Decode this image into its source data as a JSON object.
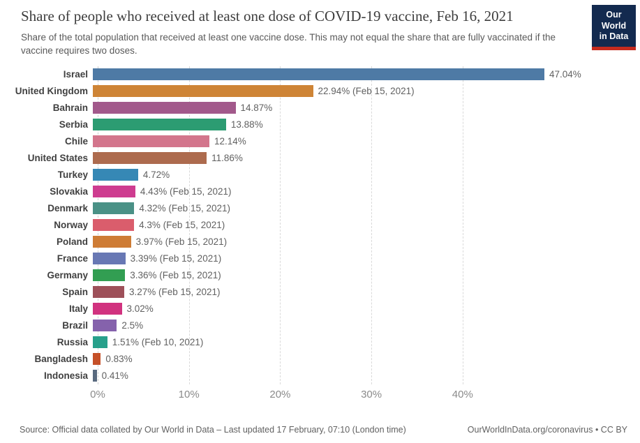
{
  "header": {
    "title": "Share of people who received at least one dose of COVID-19 vaccine, Feb 16, 2021",
    "subtitle": "Share of the total population that received at least one vaccine dose. This may not equal the share that are fully vaccinated if the vaccine requires two doses.",
    "logo": {
      "line1": "Our World",
      "line2": "in Data",
      "bg_color": "#132A4F",
      "accent_color": "#C62B1E"
    }
  },
  "chart_data": {
    "type": "bar",
    "orientation": "horizontal",
    "title": "Share of people who received at least one dose of COVID-19 vaccine, Feb 16, 2021",
    "categories": [
      "Israel",
      "United Kingdom",
      "Bahrain",
      "Serbia",
      "Chile",
      "United States",
      "Turkey",
      "Slovakia",
      "Denmark",
      "Norway",
      "Poland",
      "France",
      "Germany",
      "Spain",
      "Italy",
      "Brazil",
      "Russia",
      "Bangladesh",
      "Indonesia"
    ],
    "values": [
      47.04,
      22.94,
      14.87,
      13.88,
      12.14,
      11.86,
      4.72,
      4.43,
      4.32,
      4.3,
      3.97,
      3.39,
      3.36,
      3.27,
      3.02,
      2.5,
      1.51,
      0.83,
      0.41
    ],
    "value_labels": [
      "47.04%",
      "22.94% (Feb 15, 2021)",
      "14.87%",
      "13.88%",
      "12.14%",
      "11.86%",
      "4.72%",
      "4.43% (Feb 15, 2021)",
      "4.32% (Feb 15, 2021)",
      "4.3% (Feb 15, 2021)",
      "3.97% (Feb 15, 2021)",
      "3.39% (Feb 15, 2021)",
      "3.36% (Feb 15, 2021)",
      "3.27% (Feb 15, 2021)",
      "3.02%",
      "2.5%",
      "1.51% (Feb 10, 2021)",
      "0.83%",
      "0.41%"
    ],
    "colors": [
      "#4E7AA5",
      "#CE8436",
      "#A2598B",
      "#2C9C72",
      "#D3758C",
      "#AD6B4E",
      "#3688B5",
      "#CE3C90",
      "#4A9186",
      "#DA5D6C",
      "#CE7C35",
      "#6878B4",
      "#329E52",
      "#9E5059",
      "#D1327F",
      "#8562AC",
      "#28A08B",
      "#C55028",
      "#596A7F"
    ],
    "x_ticks": [
      "0%",
      "10%",
      "20%",
      "30%",
      "40%"
    ],
    "x_tick_values": [
      0,
      10,
      20,
      30,
      40
    ],
    "xlim": [
      0,
      57
    ],
    "grid": "dashed-vertical",
    "legend": "none"
  },
  "footer": {
    "source": "Source: Official data collated by Our World in Data – Last updated 17 February, 07:10 (London time)",
    "link": "OurWorldInData.org/coronavirus • CC BY"
  }
}
